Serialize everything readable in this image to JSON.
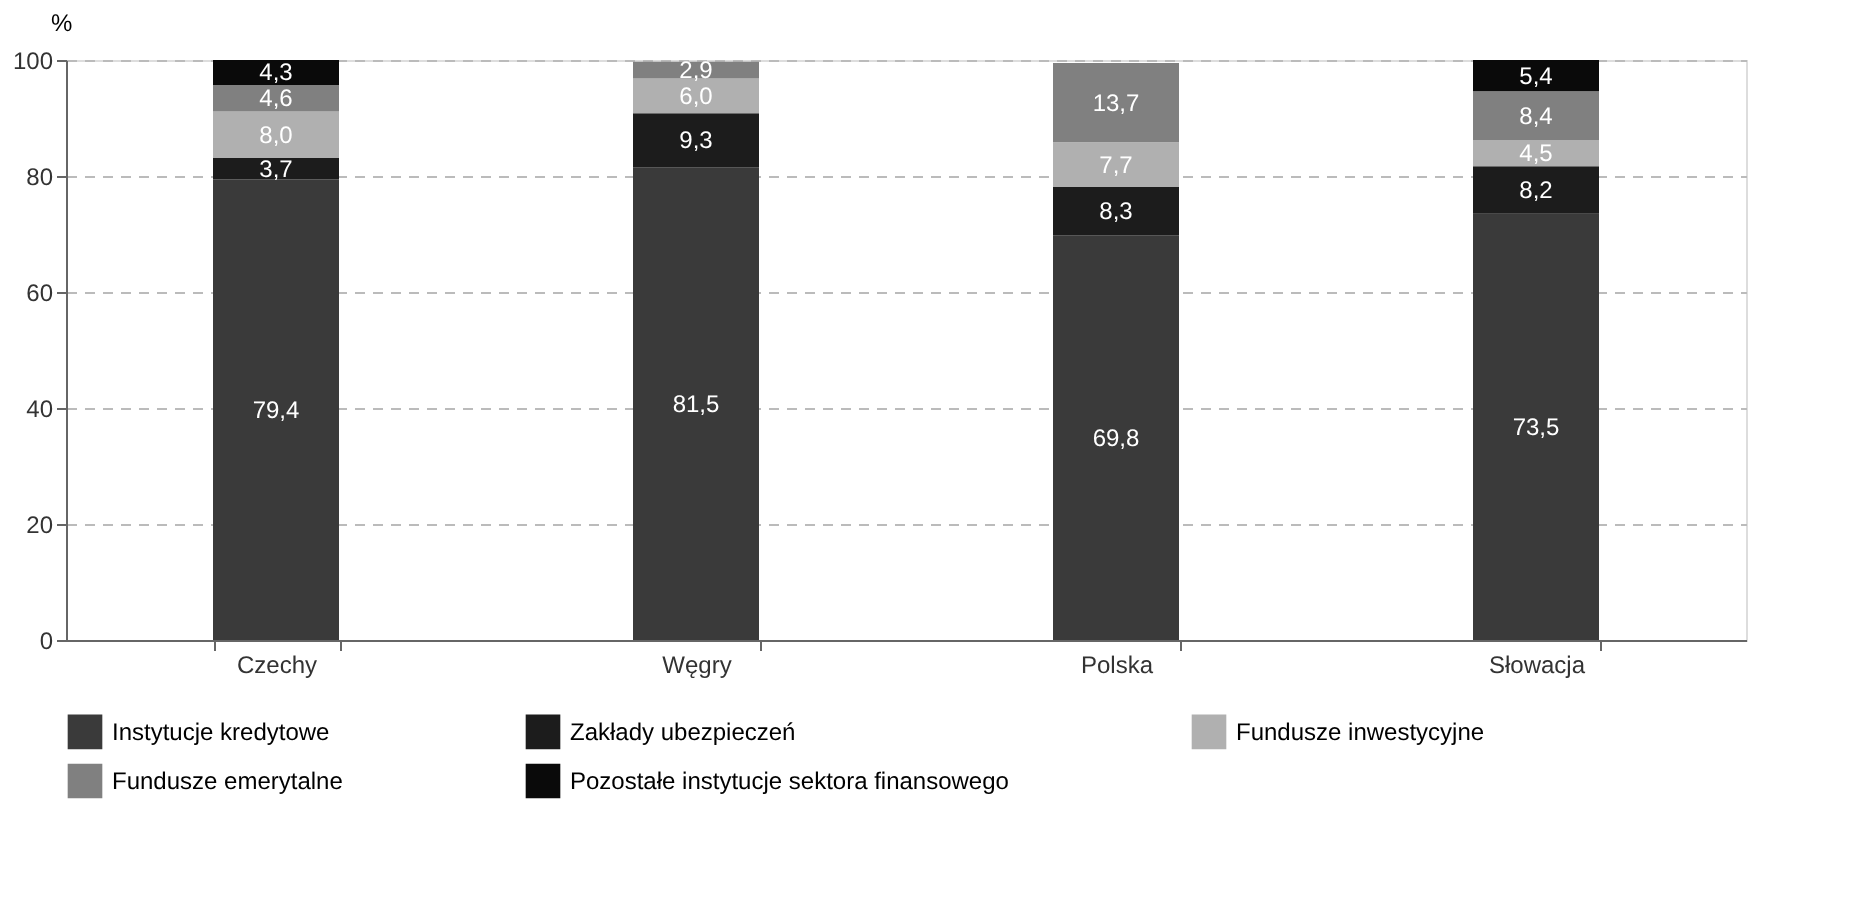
{
  "chart_data": {
    "type": "bar",
    "stacked": true,
    "ylabel": "%",
    "categories": [
      "Czechy",
      "Węgry",
      "Polska",
      "Słowacja"
    ],
    "series": [
      {
        "name": "Instytucje kredytowe",
        "color": "#3a3a3a",
        "values": [
          79.4,
          81.5,
          69.8,
          73.5
        ],
        "value_labels": [
          "79,4",
          "81,5",
          "69,8",
          "73,5"
        ]
      },
      {
        "name": "Zakłady ubezpieczeń",
        "color": "#1c1c1c",
        "values": [
          3.7,
          9.3,
          8.3,
          8.2
        ],
        "value_labels": [
          "3,7",
          "9,3",
          "8,3",
          "8,2"
        ]
      },
      {
        "name": "Fundusze inwestycyjne",
        "color": "#b0b0b0",
        "values": [
          8.0,
          6.0,
          7.7,
          4.5
        ],
        "value_labels": [
          "8,0",
          "6,0",
          "7,7",
          "4,5"
        ]
      },
      {
        "name": "Fundusze emerytalne",
        "color": "#808080",
        "values": [
          4.6,
          2.9,
          13.7,
          8.4
        ],
        "value_labels": [
          "4,6",
          "2,9",
          "13,7",
          "8,4"
        ]
      },
      {
        "name": "Pozostałe instytucje sektora finansowego",
        "color": "#0a0a0a",
        "values": [
          4.3,
          null,
          null,
          5.4
        ],
        "value_labels": [
          "4,3",
          null,
          null,
          "5,4"
        ]
      }
    ],
    "ylim": [
      0,
      100
    ],
    "yticks": [
      0,
      20,
      40,
      60,
      80,
      100
    ],
    "grid": "y",
    "legend": "bottom"
  }
}
